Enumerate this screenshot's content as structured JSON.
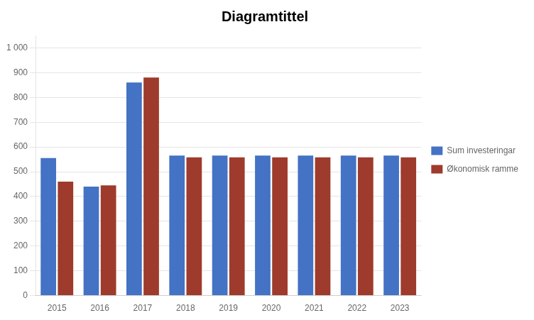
{
  "chart_data": {
    "type": "bar",
    "title": "Diagramtittel",
    "categories": [
      "2015",
      "2016",
      "2017",
      "2018",
      "2019",
      "2020",
      "2021",
      "2022",
      "2023"
    ],
    "series": [
      {
        "name": "Sum investeringar",
        "color": "#4472C4",
        "values": [
          555,
          440,
          860,
          565,
          565,
          565,
          565,
          565,
          565
        ]
      },
      {
        "name": "Økonomisk ramme",
        "color": "#9E3B2C",
        "values": [
          460,
          445,
          880,
          558,
          558,
          558,
          558,
          558,
          558
        ]
      }
    ],
    "ylim": [
      0,
      1050
    ],
    "yticks": [
      0,
      100,
      200,
      300,
      400,
      500,
      600,
      700,
      800,
      900,
      {
        "value": 1000,
        "label": "1 000"
      }
    ],
    "grid": true,
    "legend": "right"
  }
}
